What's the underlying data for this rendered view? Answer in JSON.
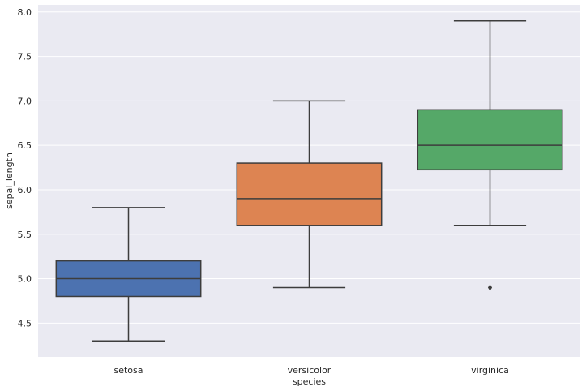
{
  "chart_data": {
    "type": "box",
    "xlabel": "species",
    "ylabel": "sepal_length",
    "ylim": [
      4.12,
      8.08
    ],
    "yticks": [
      4.5,
      5.0,
      5.5,
      6.0,
      6.5,
      7.0,
      7.5,
      8.0
    ],
    "ytick_labels": [
      "4.5",
      "5.0",
      "5.5",
      "6.0",
      "6.5",
      "7.0",
      "7.5",
      "8.0"
    ],
    "grid": true,
    "categories": [
      "setosa",
      "versicolor",
      "virginica"
    ],
    "boxes": [
      {
        "category": "setosa",
        "whisker_low": 4.3,
        "q1": 4.8,
        "median": 5.0,
        "q3": 5.2,
        "whisker_high": 5.8,
        "outliers": [],
        "color": "#4c72b0"
      },
      {
        "category": "versicolor",
        "whisker_low": 4.9,
        "q1": 5.6,
        "median": 5.9,
        "q3": 6.3,
        "whisker_high": 7.0,
        "outliers": [],
        "color": "#dd8452"
      },
      {
        "category": "virginica",
        "whisker_low": 5.6,
        "q1": 6.225,
        "median": 6.5,
        "q3": 6.9,
        "whisker_high": 7.9,
        "outliers": [
          4.9
        ],
        "color": "#55a868"
      }
    ],
    "background_color": "#eaeaf2",
    "grid_color": "#ffffff",
    "line_color": "#3d3d3d"
  }
}
